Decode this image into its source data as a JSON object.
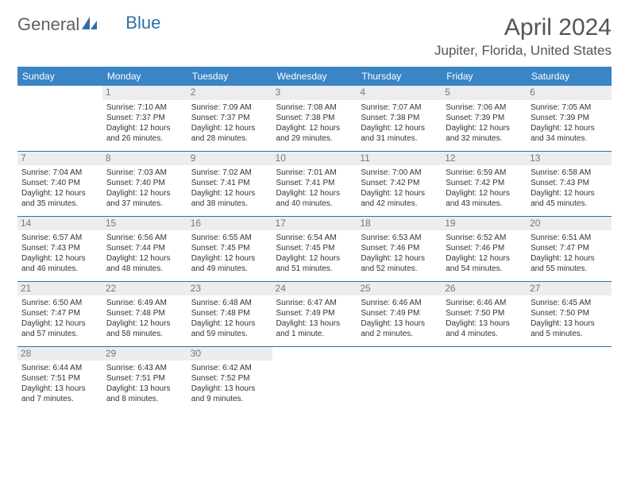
{
  "brand": {
    "part1": "General",
    "part2": "Blue"
  },
  "title": "April 2024",
  "location": "Jupiter, Florida, United States",
  "colors": {
    "header_bg": "#3a85c6",
    "header_text": "#ffffff",
    "border": "#2f6fa8",
    "daynum_bg": "#ededed",
    "daynum_text": "#777777",
    "body_text": "#333333",
    "title_text": "#555555"
  },
  "weekdays": [
    "Sunday",
    "Monday",
    "Tuesday",
    "Wednesday",
    "Thursday",
    "Friday",
    "Saturday"
  ],
  "weeks": [
    [
      null,
      {
        "n": "1",
        "sr": "Sunrise: 7:10 AM",
        "ss": "Sunset: 7:37 PM",
        "d1": "Daylight: 12 hours",
        "d2": "and 26 minutes."
      },
      {
        "n": "2",
        "sr": "Sunrise: 7:09 AM",
        "ss": "Sunset: 7:37 PM",
        "d1": "Daylight: 12 hours",
        "d2": "and 28 minutes."
      },
      {
        "n": "3",
        "sr": "Sunrise: 7:08 AM",
        "ss": "Sunset: 7:38 PM",
        "d1": "Daylight: 12 hours",
        "d2": "and 29 minutes."
      },
      {
        "n": "4",
        "sr": "Sunrise: 7:07 AM",
        "ss": "Sunset: 7:38 PM",
        "d1": "Daylight: 12 hours",
        "d2": "and 31 minutes."
      },
      {
        "n": "5",
        "sr": "Sunrise: 7:06 AM",
        "ss": "Sunset: 7:39 PM",
        "d1": "Daylight: 12 hours",
        "d2": "and 32 minutes."
      },
      {
        "n": "6",
        "sr": "Sunrise: 7:05 AM",
        "ss": "Sunset: 7:39 PM",
        "d1": "Daylight: 12 hours",
        "d2": "and 34 minutes."
      }
    ],
    [
      {
        "n": "7",
        "sr": "Sunrise: 7:04 AM",
        "ss": "Sunset: 7:40 PM",
        "d1": "Daylight: 12 hours",
        "d2": "and 35 minutes."
      },
      {
        "n": "8",
        "sr": "Sunrise: 7:03 AM",
        "ss": "Sunset: 7:40 PM",
        "d1": "Daylight: 12 hours",
        "d2": "and 37 minutes."
      },
      {
        "n": "9",
        "sr": "Sunrise: 7:02 AM",
        "ss": "Sunset: 7:41 PM",
        "d1": "Daylight: 12 hours",
        "d2": "and 38 minutes."
      },
      {
        "n": "10",
        "sr": "Sunrise: 7:01 AM",
        "ss": "Sunset: 7:41 PM",
        "d1": "Daylight: 12 hours",
        "d2": "and 40 minutes."
      },
      {
        "n": "11",
        "sr": "Sunrise: 7:00 AM",
        "ss": "Sunset: 7:42 PM",
        "d1": "Daylight: 12 hours",
        "d2": "and 42 minutes."
      },
      {
        "n": "12",
        "sr": "Sunrise: 6:59 AM",
        "ss": "Sunset: 7:42 PM",
        "d1": "Daylight: 12 hours",
        "d2": "and 43 minutes."
      },
      {
        "n": "13",
        "sr": "Sunrise: 6:58 AM",
        "ss": "Sunset: 7:43 PM",
        "d1": "Daylight: 12 hours",
        "d2": "and 45 minutes."
      }
    ],
    [
      {
        "n": "14",
        "sr": "Sunrise: 6:57 AM",
        "ss": "Sunset: 7:43 PM",
        "d1": "Daylight: 12 hours",
        "d2": "and 46 minutes."
      },
      {
        "n": "15",
        "sr": "Sunrise: 6:56 AM",
        "ss": "Sunset: 7:44 PM",
        "d1": "Daylight: 12 hours",
        "d2": "and 48 minutes."
      },
      {
        "n": "16",
        "sr": "Sunrise: 6:55 AM",
        "ss": "Sunset: 7:45 PM",
        "d1": "Daylight: 12 hours",
        "d2": "and 49 minutes."
      },
      {
        "n": "17",
        "sr": "Sunrise: 6:54 AM",
        "ss": "Sunset: 7:45 PM",
        "d1": "Daylight: 12 hours",
        "d2": "and 51 minutes."
      },
      {
        "n": "18",
        "sr": "Sunrise: 6:53 AM",
        "ss": "Sunset: 7:46 PM",
        "d1": "Daylight: 12 hours",
        "d2": "and 52 minutes."
      },
      {
        "n": "19",
        "sr": "Sunrise: 6:52 AM",
        "ss": "Sunset: 7:46 PM",
        "d1": "Daylight: 12 hours",
        "d2": "and 54 minutes."
      },
      {
        "n": "20",
        "sr": "Sunrise: 6:51 AM",
        "ss": "Sunset: 7:47 PM",
        "d1": "Daylight: 12 hours",
        "d2": "and 55 minutes."
      }
    ],
    [
      {
        "n": "21",
        "sr": "Sunrise: 6:50 AM",
        "ss": "Sunset: 7:47 PM",
        "d1": "Daylight: 12 hours",
        "d2": "and 57 minutes."
      },
      {
        "n": "22",
        "sr": "Sunrise: 6:49 AM",
        "ss": "Sunset: 7:48 PM",
        "d1": "Daylight: 12 hours",
        "d2": "and 58 minutes."
      },
      {
        "n": "23",
        "sr": "Sunrise: 6:48 AM",
        "ss": "Sunset: 7:48 PM",
        "d1": "Daylight: 12 hours",
        "d2": "and 59 minutes."
      },
      {
        "n": "24",
        "sr": "Sunrise: 6:47 AM",
        "ss": "Sunset: 7:49 PM",
        "d1": "Daylight: 13 hours",
        "d2": "and 1 minute."
      },
      {
        "n": "25",
        "sr": "Sunrise: 6:46 AM",
        "ss": "Sunset: 7:49 PM",
        "d1": "Daylight: 13 hours",
        "d2": "and 2 minutes."
      },
      {
        "n": "26",
        "sr": "Sunrise: 6:46 AM",
        "ss": "Sunset: 7:50 PM",
        "d1": "Daylight: 13 hours",
        "d2": "and 4 minutes."
      },
      {
        "n": "27",
        "sr": "Sunrise: 6:45 AM",
        "ss": "Sunset: 7:50 PM",
        "d1": "Daylight: 13 hours",
        "d2": "and 5 minutes."
      }
    ],
    [
      {
        "n": "28",
        "sr": "Sunrise: 6:44 AM",
        "ss": "Sunset: 7:51 PM",
        "d1": "Daylight: 13 hours",
        "d2": "and 7 minutes."
      },
      {
        "n": "29",
        "sr": "Sunrise: 6:43 AM",
        "ss": "Sunset: 7:51 PM",
        "d1": "Daylight: 13 hours",
        "d2": "and 8 minutes."
      },
      {
        "n": "30",
        "sr": "Sunrise: 6:42 AM",
        "ss": "Sunset: 7:52 PM",
        "d1": "Daylight: 13 hours",
        "d2": "and 9 minutes."
      },
      null,
      null,
      null,
      null
    ]
  ]
}
